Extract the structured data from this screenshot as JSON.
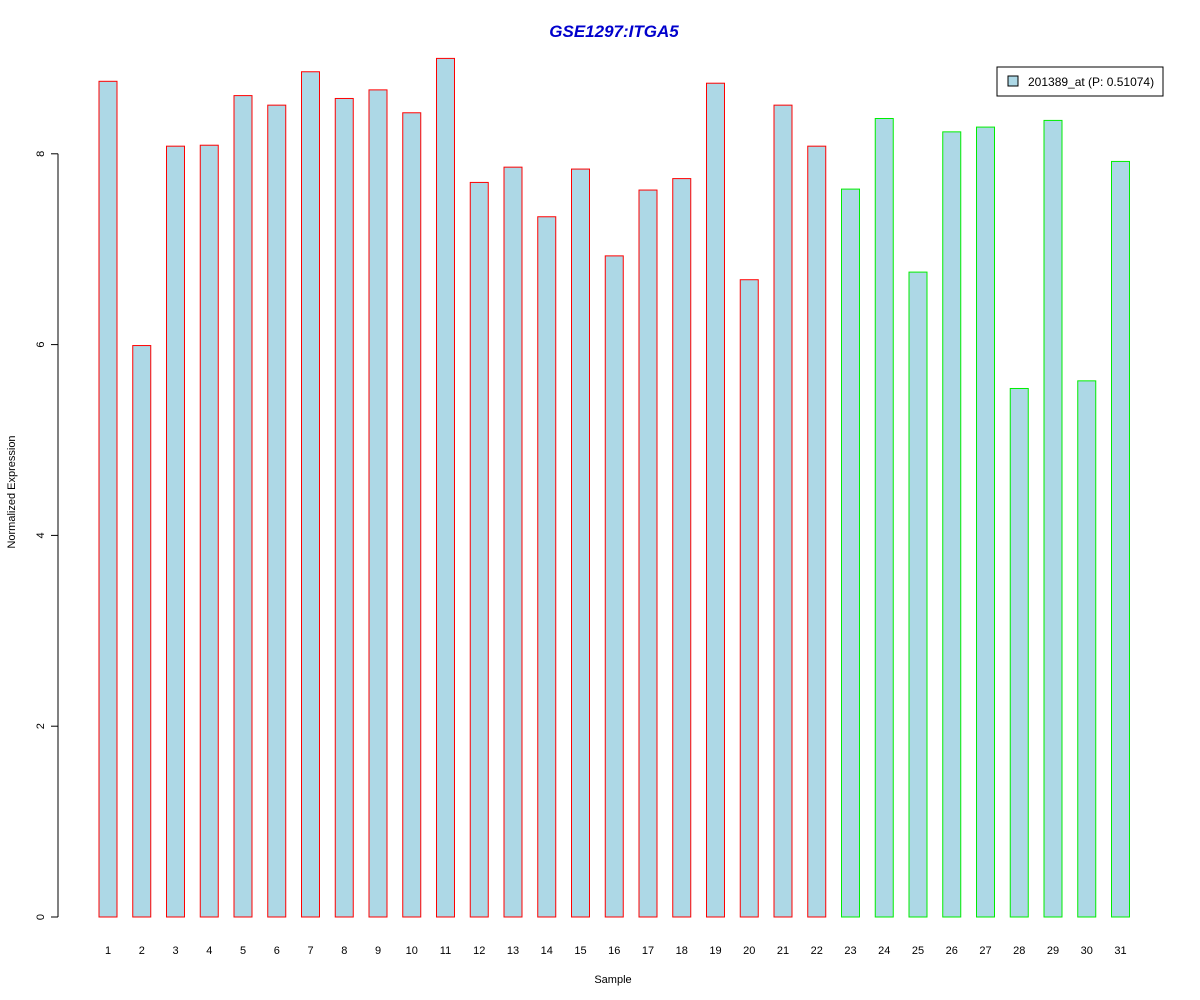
{
  "chart_data": {
    "type": "bar",
    "title": "GSE1297:ITGA5",
    "xlabel": "Sample",
    "ylabel": "Normalized Expression",
    "categories": [
      "1",
      "2",
      "3",
      "4",
      "5",
      "6",
      "7",
      "8",
      "9",
      "10",
      "11",
      "12",
      "13",
      "14",
      "15",
      "16",
      "17",
      "18",
      "19",
      "20",
      "21",
      "22",
      "23",
      "24",
      "25",
      "26",
      "27",
      "28",
      "29",
      "30",
      "31"
    ],
    "series": [
      {
        "name": "201389_at (P: 0.51074)",
        "values": [
          8.76,
          5.99,
          8.08,
          8.09,
          8.61,
          8.51,
          8.86,
          8.58,
          8.67,
          8.43,
          9.0,
          7.7,
          7.86,
          7.34,
          7.84,
          6.93,
          7.62,
          7.74,
          8.74,
          6.68,
          8.51,
          8.08,
          7.63,
          8.37,
          6.76,
          8.23,
          8.28,
          5.54,
          8.35,
          5.62,
          7.92
        ],
        "group": [
          "A",
          "A",
          "A",
          "A",
          "A",
          "A",
          "A",
          "A",
          "A",
          "A",
          "A",
          "A",
          "A",
          "A",
          "A",
          "A",
          "A",
          "A",
          "A",
          "A",
          "A",
          "A",
          "B",
          "B",
          "B",
          "B",
          "B",
          "B",
          "B",
          "B",
          "B"
        ]
      }
    ],
    "yticks": [
      0,
      2,
      4,
      6,
      8
    ],
    "ylim": [
      0,
      9
    ],
    "grid": false,
    "legend_position": "top-right",
    "colors": {
      "title": "#0000cc",
      "bar_fill": "#add8e6",
      "group_A_border": "#ff0000",
      "group_B_border": "#00ee00",
      "axis": "#000000"
    }
  }
}
